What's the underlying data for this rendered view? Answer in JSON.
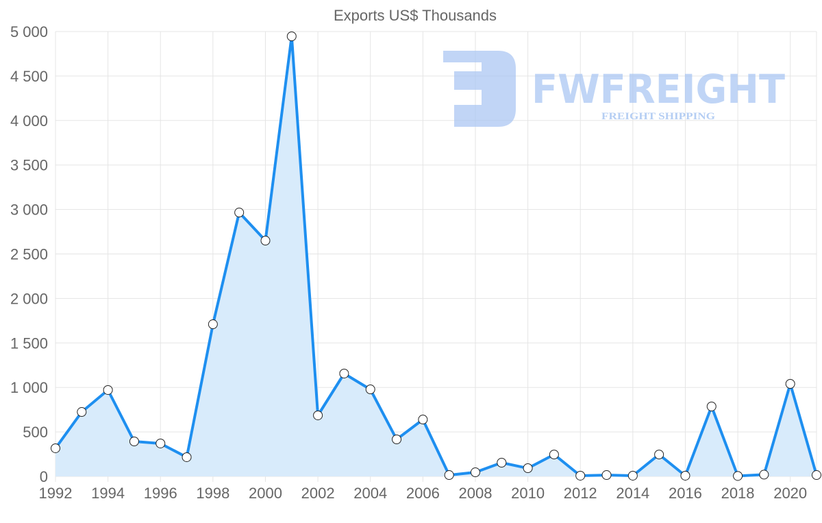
{
  "chart_data": {
    "type": "line",
    "title": "Exports US$ Thousands",
    "xlabel": "",
    "ylabel": "",
    "x": [
      1992,
      1993,
      1994,
      1995,
      1996,
      1997,
      1998,
      1999,
      2000,
      2001,
      2002,
      2003,
      2004,
      2005,
      2006,
      2007,
      2008,
      2009,
      2010,
      2011,
      2012,
      2013,
      2014,
      2015,
      2016,
      2017,
      2018,
      2019,
      2020,
      2021
    ],
    "series": [
      {
        "name": "Exports US$ Thousands",
        "values": [
          316,
          724,
          971,
          393,
          370,
          216,
          1710,
          2966,
          2650,
          4946,
          686,
          1156,
          978,
          416,
          639,
          15,
          46,
          154,
          92,
          246,
          8,
          15,
          8,
          246,
          8,
          786,
          5,
          20,
          1040,
          15
        ]
      }
    ],
    "xlim": [
      1992,
      2021
    ],
    "ylim": [
      0,
      5000
    ],
    "yticks": [
      0,
      500,
      1000,
      1500,
      2000,
      2500,
      3000,
      3500,
      4000,
      4500,
      5000
    ],
    "ytick_labels": [
      "0",
      "500",
      "1 000",
      "1 500",
      "2 000",
      "2 500",
      "3 000",
      "3 500",
      "4 000",
      "4 500",
      "5 000"
    ],
    "xticks": [
      1992,
      1994,
      1996,
      1998,
      2000,
      2002,
      2004,
      2006,
      2008,
      2010,
      2012,
      2014,
      2016,
      2018,
      2020
    ],
    "grid": true,
    "fill": true,
    "colors": {
      "line": "#1e8ff0",
      "fill": "#d8ebfb",
      "grid": "#e5e5e5",
      "watermark": "#a9c6f2"
    }
  },
  "watermark": {
    "brand": "FWFREIGHT",
    "tagline": "FREIGHT SHIPPING"
  }
}
